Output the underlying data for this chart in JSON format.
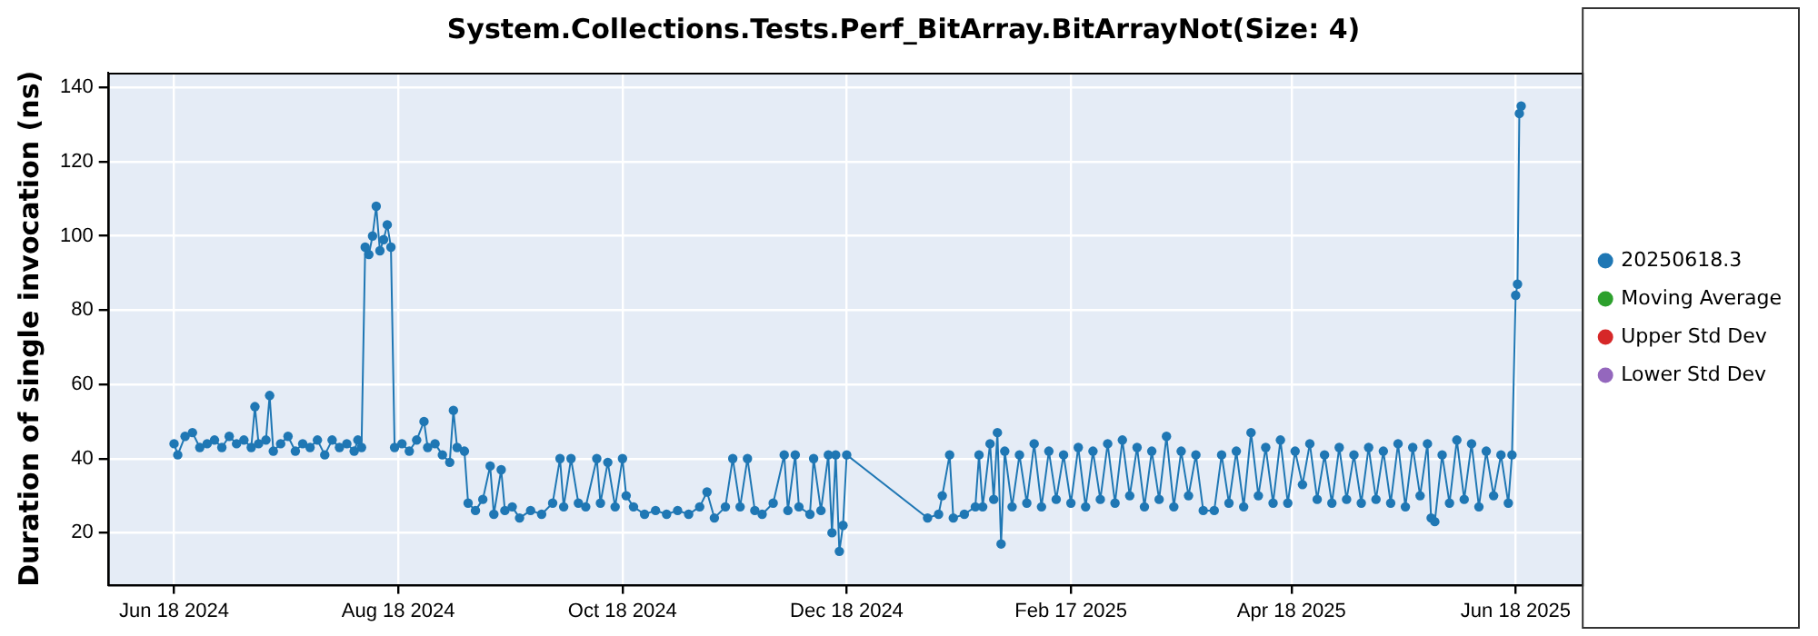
{
  "chart_data": {
    "type": "line",
    "title": "System.Collections.Tests.Perf_BitArray.BitArrayNot(Size: 4)",
    "ylabel": "Duration of single invocation (ns)",
    "xlim": [
      "2024-05-31",
      "2025-07-06"
    ],
    "xticks": [
      {
        "value": "2024-06-18",
        "label": "Jun 18 2024"
      },
      {
        "value": "2024-08-18",
        "label": "Aug 18 2024"
      },
      {
        "value": "2024-10-18",
        "label": "Oct 18 2024"
      },
      {
        "value": "2024-12-18",
        "label": "Dec 18 2024"
      },
      {
        "value": "2025-02-17",
        "label": "Feb 17 2025"
      },
      {
        "value": "2025-04-18",
        "label": "Apr 18 2025"
      },
      {
        "value": "2025-06-18",
        "label": "Jun 18 2025"
      }
    ],
    "ylim": [
      6,
      144
    ],
    "yticks": [
      20,
      40,
      60,
      80,
      100,
      120,
      140
    ],
    "grid": true,
    "legend": "right",
    "marker": "circle",
    "line_style": "solid",
    "series": [
      {
        "name": "20250618.3",
        "color": "#1f77b4",
        "x": [
          "2024-06-18",
          "2024-06-19",
          "2024-06-21",
          "2024-06-23",
          "2024-06-25",
          "2024-06-27",
          "2024-06-29",
          "2024-07-01",
          "2024-07-03",
          "2024-07-05",
          "2024-07-07",
          "2024-07-09",
          "2024-07-10",
          "2024-07-11",
          "2024-07-13",
          "2024-07-14",
          "2024-07-15",
          "2024-07-17",
          "2024-07-19",
          "2024-07-21",
          "2024-07-23",
          "2024-07-25",
          "2024-07-27",
          "2024-07-29",
          "2024-07-31",
          "2024-08-02",
          "2024-08-04",
          "2024-08-06",
          "2024-08-07",
          "2024-08-08",
          "2024-08-09",
          "2024-08-10",
          "2024-08-11",
          "2024-08-12",
          "2024-08-13",
          "2024-08-14",
          "2024-08-15",
          "2024-08-16",
          "2024-08-17",
          "2024-08-19",
          "2024-08-21",
          "2024-08-23",
          "2024-08-25",
          "2024-08-26",
          "2024-08-28",
          "2024-08-30",
          "2024-09-01",
          "2024-09-02",
          "2024-09-03",
          "2024-09-05",
          "2024-09-06",
          "2024-09-08",
          "2024-09-10",
          "2024-09-12",
          "2024-09-13",
          "2024-09-15",
          "2024-09-16",
          "2024-09-18",
          "2024-09-20",
          "2024-09-23",
          "2024-09-26",
          "2024-09-29",
          "2024-10-01",
          "2024-10-02",
          "2024-10-04",
          "2024-10-06",
          "2024-10-08",
          "2024-10-11",
          "2024-10-12",
          "2024-10-14",
          "2024-10-16",
          "2024-10-18",
          "2024-10-19",
          "2024-10-21",
          "2024-10-24",
          "2024-10-27",
          "2024-10-30",
          "2024-11-02",
          "2024-11-05",
          "2024-11-08",
          "2024-11-10",
          "2024-11-12",
          "2024-11-15",
          "2024-11-17",
          "2024-11-19",
          "2024-11-21",
          "2024-11-23",
          "2024-11-25",
          "2024-11-28",
          "2024-12-01",
          "2024-12-02",
          "2024-12-04",
          "2024-12-05",
          "2024-12-08",
          "2024-12-09",
          "2024-12-11",
          "2024-12-13",
          "2024-12-14",
          "2024-12-15",
          "2024-12-16",
          "2024-12-17",
          "2024-12-18",
          "2025-01-09",
          "2025-01-12",
          "2025-01-13",
          "2025-01-15",
          "2025-01-16",
          "2025-01-19",
          "2025-01-22",
          "2025-01-23",
          "2025-01-24",
          "2025-01-26",
          "2025-01-27",
          "2025-01-28",
          "2025-01-29",
          "2025-01-30",
          "2025-02-01",
          "2025-02-03",
          "2025-02-05",
          "2025-02-07",
          "2025-02-09",
          "2025-02-11",
          "2025-02-13",
          "2025-02-15",
          "2025-02-17",
          "2025-02-19",
          "2025-02-21",
          "2025-02-23",
          "2025-02-25",
          "2025-02-27",
          "2025-03-01",
          "2025-03-03",
          "2025-03-05",
          "2025-03-07",
          "2025-03-09",
          "2025-03-11",
          "2025-03-13",
          "2025-03-15",
          "2025-03-17",
          "2025-03-19",
          "2025-03-21",
          "2025-03-23",
          "2025-03-25",
          "2025-03-28",
          "2025-03-30",
          "2025-04-01",
          "2025-04-03",
          "2025-04-05",
          "2025-04-07",
          "2025-04-09",
          "2025-04-11",
          "2025-04-13",
          "2025-04-15",
          "2025-04-17",
          "2025-04-19",
          "2025-04-21",
          "2025-04-23",
          "2025-04-25",
          "2025-04-27",
          "2025-04-29",
          "2025-05-01",
          "2025-05-03",
          "2025-05-05",
          "2025-05-07",
          "2025-05-09",
          "2025-05-11",
          "2025-05-13",
          "2025-05-15",
          "2025-05-17",
          "2025-05-19",
          "2025-05-21",
          "2025-05-23",
          "2025-05-25",
          "2025-05-26",
          "2025-05-27",
          "2025-05-29",
          "2025-05-31",
          "2025-06-02",
          "2025-06-04",
          "2025-06-06",
          "2025-06-08",
          "2025-06-10",
          "2025-06-12",
          "2025-06-14",
          "2025-06-16",
          "2025-06-17",
          "2025-06-18T00:00",
          "2025-06-18T12:00",
          "2025-06-19T00:00",
          "2025-06-19T12:00"
        ],
        "values": [
          44,
          41,
          46,
          47,
          43,
          44,
          45,
          43,
          46,
          44,
          45,
          43,
          54,
          44,
          45,
          57,
          42,
          44,
          46,
          42,
          44,
          43,
          45,
          41,
          45,
          43,
          44,
          42,
          45,
          43,
          97,
          95,
          100,
          108,
          96,
          99,
          103,
          97,
          43,
          44,
          42,
          45,
          50,
          43,
          44,
          41,
          39,
          53,
          43,
          42,
          28,
          26,
          29,
          38,
          25,
          37,
          26,
          27,
          24,
          26,
          25,
          28,
          40,
          27,
          40,
          28,
          27,
          40,
          28,
          39,
          27,
          40,
          30,
          27,
          25,
          26,
          25,
          26,
          25,
          27,
          31,
          24,
          27,
          40,
          27,
          40,
          26,
          25,
          28,
          41,
          26,
          41,
          27,
          25,
          40,
          26,
          41,
          20,
          41,
          15,
          22,
          41,
          24,
          25,
          30,
          41,
          24,
          25,
          27,
          41,
          27,
          44,
          29,
          47,
          17,
          42,
          27,
          41,
          28,
          44,
          27,
          42,
          29,
          41,
          28,
          43,
          27,
          42,
          29,
          44,
          28,
          45,
          30,
          43,
          27,
          42,
          29,
          46,
          27,
          42,
          30,
          41,
          26,
          26,
          41,
          28,
          42,
          27,
          47,
          30,
          43,
          28,
          45,
          28,
          42,
          33,
          44,
          29,
          41,
          28,
          43,
          29,
          41,
          28,
          43,
          29,
          42,
          28,
          44,
          27,
          43,
          30,
          44,
          24,
          23,
          41,
          28,
          45,
          29,
          44,
          27,
          42,
          30,
          41,
          28,
          41,
          84,
          87,
          133,
          135
        ]
      },
      {
        "name": "Moving Average",
        "color": "#2ca02c"
      },
      {
        "name": "Upper Std Dev",
        "color": "#d62728"
      },
      {
        "name": "Lower Std Dev",
        "color": "#9467bd"
      }
    ]
  }
}
